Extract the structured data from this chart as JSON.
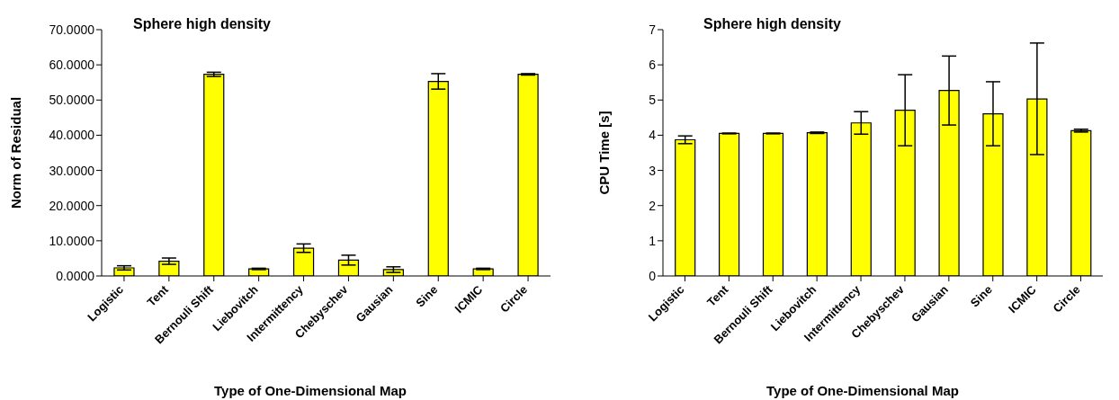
{
  "chart_data": [
    {
      "type": "bar",
      "title": "Sphere high density",
      "xlabel": "Type of One-Dimensional Map",
      "ylabel": "Norm of Residual",
      "categories": [
        "Logistic",
        "Tent",
        "Bernouli Shift",
        "Liebovitch",
        "Intermittency",
        "Chebyschev",
        "Gausian",
        "Sine",
        "ICMIC",
        "Circle"
      ],
      "series": [
        {
          "color": "#ffff00",
          "values": [
            2.3,
            4.2,
            57.3,
            2.0,
            7.9,
            4.5,
            1.8,
            55.3,
            2.0,
            57.3
          ],
          "errors": [
            0.6,
            0.9,
            0.6,
            0.2,
            1.2,
            1.4,
            0.8,
            2.2,
            0.2,
            0.2
          ]
        }
      ],
      "ylim": [
        0,
        70
      ],
      "yticks": [
        {
          "value": 0,
          "label": "0.0000"
        },
        {
          "value": 10,
          "label": "10.0000"
        },
        {
          "value": 20,
          "label": "20.0000"
        },
        {
          "value": 30,
          "label": "30.0000"
        },
        {
          "value": 40,
          "label": "40.0000"
        },
        {
          "value": 50,
          "label": "50.0000"
        },
        {
          "value": 60,
          "label": "60.0000"
        },
        {
          "value": 70,
          "label": "70.0000"
        }
      ],
      "grid": false,
      "legend": false
    },
    {
      "type": "bar",
      "title": "Sphere high density",
      "xlabel": "Type of One-Dimensional Map",
      "ylabel": "CPU Time  [s]",
      "categories": [
        "Logistic",
        "Tent",
        "Bernouli Shift",
        "Liebovitch",
        "Intermittency",
        "Chebyschev",
        "Gausian",
        "Sine",
        "ICMIC",
        "Circle"
      ],
      "series": [
        {
          "color": "#ffff00",
          "values": [
            3.87,
            4.05,
            4.05,
            4.07,
            4.35,
            4.71,
            5.27,
            4.61,
            5.03,
            4.13
          ],
          "errors": [
            0.11,
            0.01,
            0.01,
            0.02,
            0.32,
            [
              3.7,
              5.72
            ],
            0.98,
            [
              3.7,
              5.52
            ],
            [
              3.45,
              6.62
            ],
            0.04
          ]
        }
      ],
      "ylim": [
        0,
        7
      ],
      "yticks": [
        0,
        1,
        2,
        3,
        4,
        5,
        6,
        7
      ],
      "grid": false,
      "legend": false
    }
  ]
}
